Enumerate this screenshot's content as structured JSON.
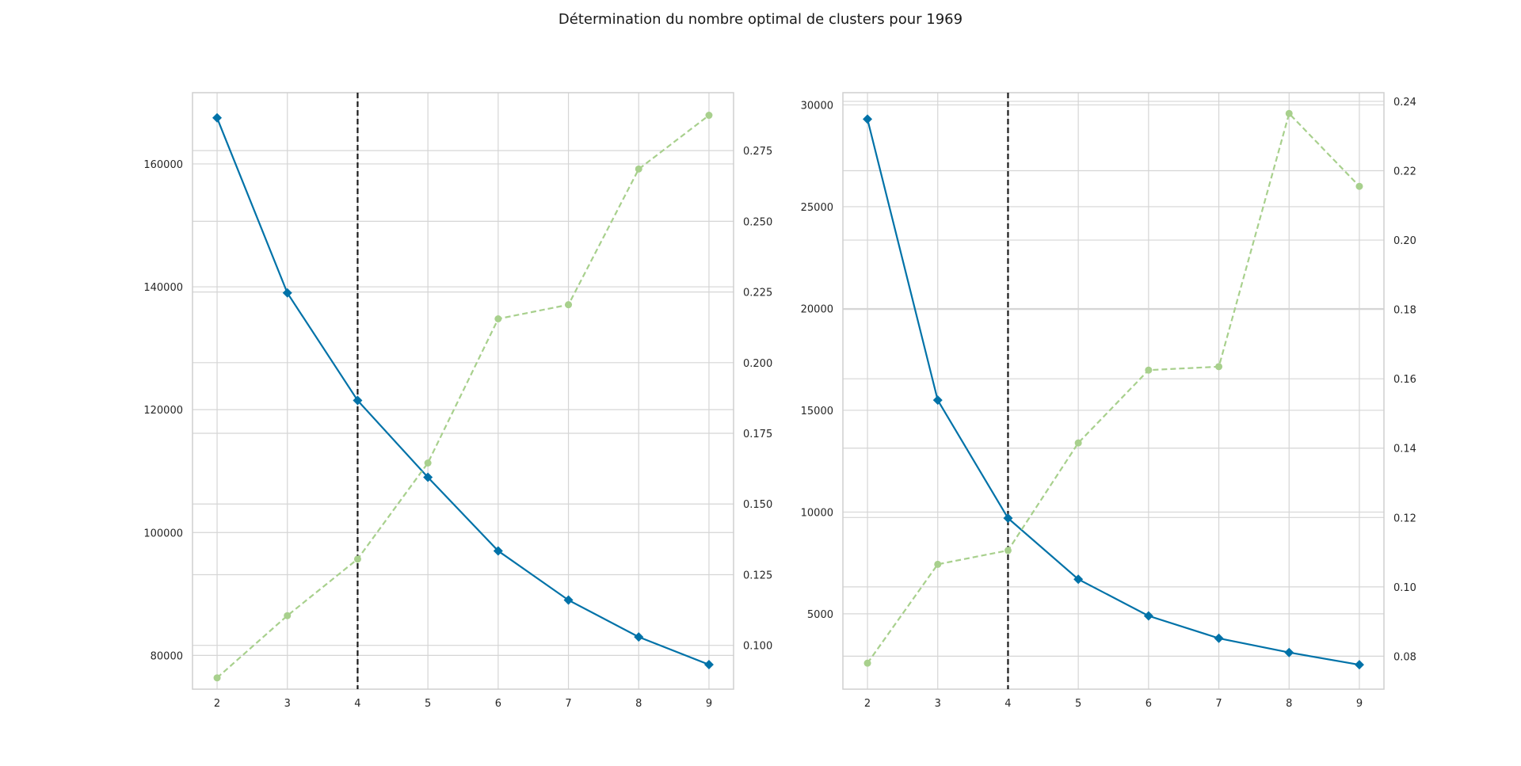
{
  "suptitle": "Détermination du nombre optimal de clusters pour 1969",
  "colors": {
    "distortion": "#0072a8",
    "fit_time": "#a8d08d",
    "elbow": "#1a1a1a",
    "grid": "#d5d5d5",
    "spine": "#cfcfcf"
  },
  "chart_data": [
    {
      "type": "line",
      "x": [
        2,
        3,
        4,
        5,
        6,
        7,
        8,
        9
      ],
      "xticks": [
        2,
        3,
        4,
        5,
        6,
        7,
        8,
        9
      ],
      "xlim": [
        1.65,
        9.35
      ],
      "elbow_x": 4,
      "series": [
        {
          "axis": "left",
          "marker": "diamond",
          "line": "solid",
          "values": [
            167500,
            139000,
            121500,
            109000,
            97000,
            89000,
            83000,
            78500
          ]
        },
        {
          "axis": "right",
          "marker": "circle",
          "line": "dashed",
          "values": [
            0.0885,
            0.1105,
            0.1305,
            0.1645,
            0.2155,
            0.2205,
            0.2685,
            0.2875
          ]
        }
      ],
      "y_left": {
        "lim": [
          74500,
          171600
        ],
        "ticks": [
          80000,
          100000,
          120000,
          140000,
          160000
        ],
        "tick_labels": [
          "80000",
          "100000",
          "120000",
          "140000",
          "160000"
        ]
      },
      "y_right": {
        "lim": [
          0.0845,
          0.2955
        ],
        "ticks": [
          0.1,
          0.125,
          0.15,
          0.175,
          0.2,
          0.225,
          0.25,
          0.275
        ],
        "tick_labels": [
          "0.100",
          "0.125",
          "0.150",
          "0.175",
          "0.200",
          "0.225",
          "0.250",
          "0.275"
        ]
      },
      "grid": true
    },
    {
      "type": "line",
      "x": [
        2,
        3,
        4,
        5,
        6,
        7,
        8,
        9
      ],
      "xticks": [
        2,
        3,
        4,
        5,
        6,
        7,
        8,
        9
      ],
      "xlim": [
        1.65,
        9.35
      ],
      "elbow_x": 4,
      "series": [
        {
          "axis": "left",
          "marker": "diamond",
          "line": "solid",
          "values": [
            29300,
            15500,
            9700,
            6700,
            4900,
            3800,
            3100,
            2500
          ]
        },
        {
          "axis": "right",
          "marker": "circle",
          "line": "dashed",
          "values": [
            0.078,
            0.1065,
            0.1105,
            0.1415,
            0.1625,
            0.1635,
            0.2365,
            0.2155
          ]
        }
      ],
      "y_left": {
        "lim": [
          1300,
          30600
        ],
        "ticks": [
          5000,
          10000,
          15000,
          20000,
          25000,
          30000
        ],
        "tick_labels": [
          "5000",
          "10000",
          "15000",
          "20000",
          "25000",
          "30000"
        ]
      },
      "y_right": {
        "lim": [
          0.0705,
          0.2425
        ],
        "ticks": [
          0.08,
          0.1,
          0.12,
          0.14,
          0.16,
          0.18,
          0.2,
          0.22,
          0.24
        ],
        "tick_labels": [
          "0.08",
          "0.10",
          "0.12",
          "0.14",
          "0.16",
          "0.18",
          "0.20",
          "0.22",
          "0.24"
        ]
      },
      "grid": true
    }
  ]
}
